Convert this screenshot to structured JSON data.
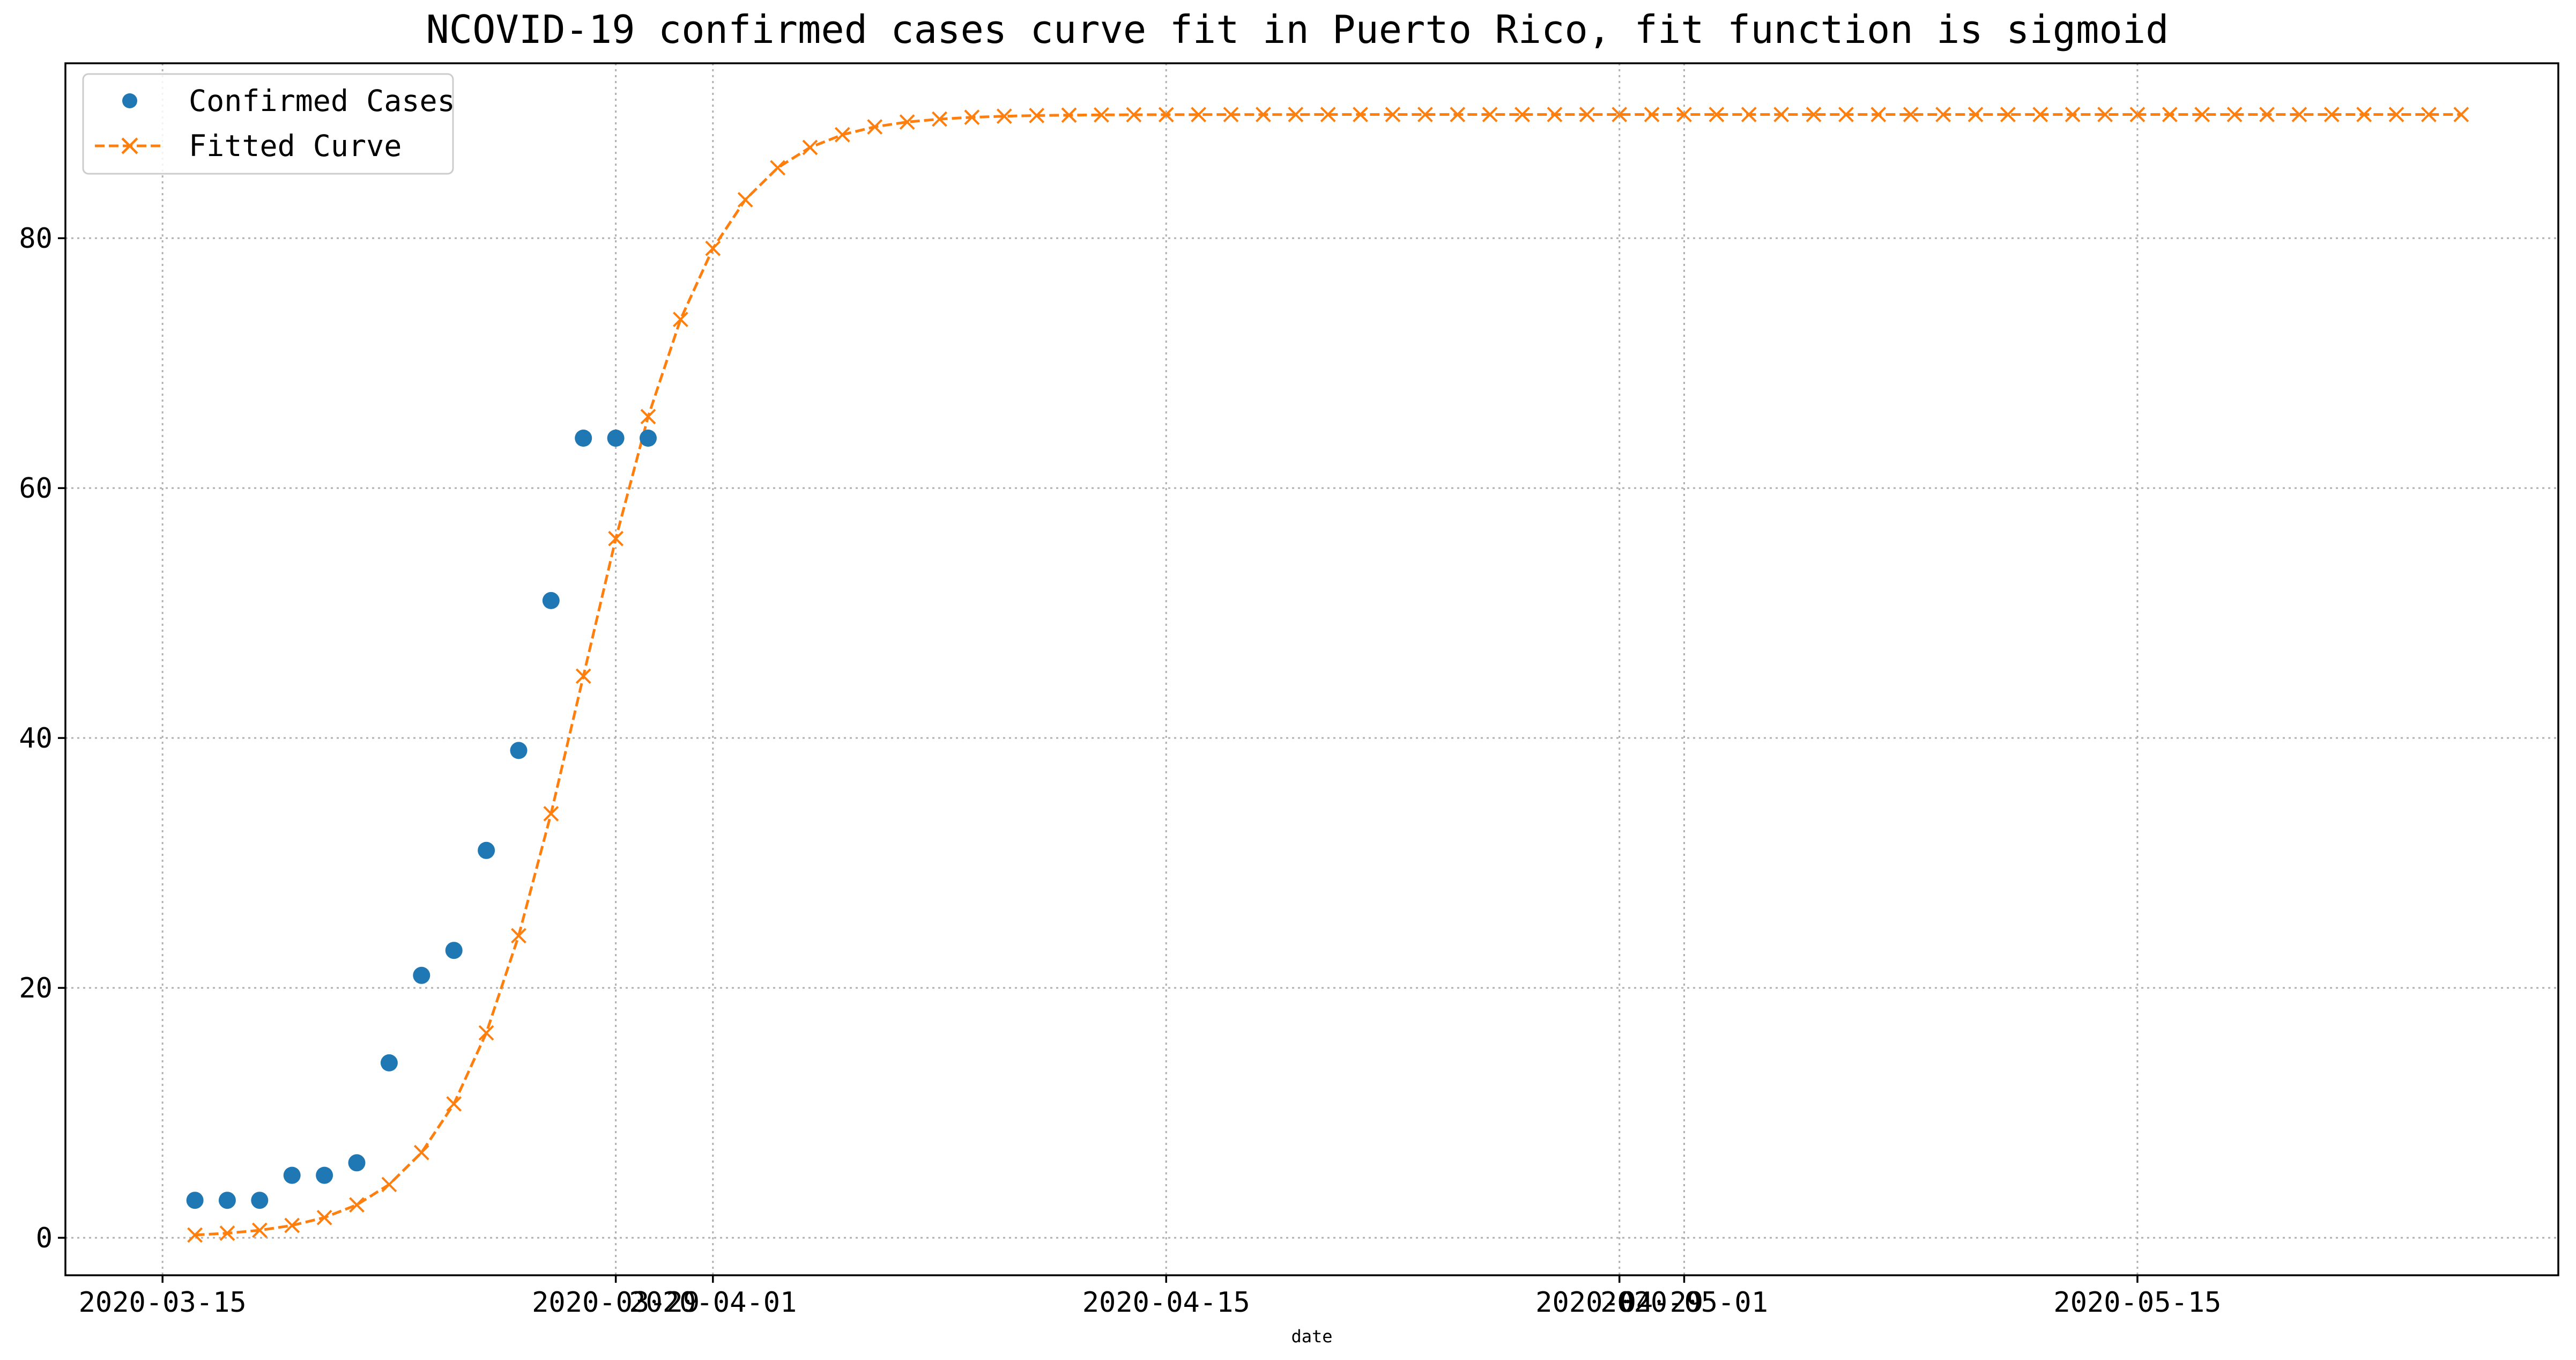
{
  "chart_data": {
    "type": "line",
    "title": "NCOVID-19 confirmed cases curve fit in Puerto Rico, fit function is sigmoid",
    "xlabel": "date",
    "ylabel": "",
    "x_range": [
      "2020-03-12",
      "2020-05-28"
    ],
    "ylim": [
      -3,
      94
    ],
    "x_ticks": [
      "2020-03-15",
      "2020-03-29",
      "2020-04-01",
      "2020-04-15",
      "2020-04-29",
      "2020-05-01",
      "2020-05-15"
    ],
    "x_tick_labels": [
      "2020-03-15",
      "2020-03-29",
      "2020-04-01",
      "2020-04-15",
      "2020-04-29",
      "2020-05-01",
      "2020-05-15"
    ],
    "y_ticks": [
      0,
      20,
      40,
      60,
      80
    ],
    "y_tick_labels": [
      "0",
      "20",
      "40",
      "60",
      "80"
    ],
    "grid": true,
    "legend": "top-left",
    "series": [
      {
        "name": "Confirmed Cases",
        "style": "markers",
        "marker": "circle",
        "color": "#1f77b4",
        "x": [
          "2020-03-16",
          "2020-03-17",
          "2020-03-18",
          "2020-03-19",
          "2020-03-20",
          "2020-03-21",
          "2020-03-22",
          "2020-03-23",
          "2020-03-24",
          "2020-03-25",
          "2020-03-26",
          "2020-03-27",
          "2020-03-28",
          "2020-03-29",
          "2020-03-30"
        ],
        "y": [
          3,
          3,
          3,
          5,
          5,
          6,
          14,
          21,
          23,
          31,
          39,
          51,
          64,
          64,
          64
        ]
      },
      {
        "name": "Fitted Curve",
        "style": "dashed-line-x-markers",
        "marker": "x",
        "color": "#ff7f0e",
        "x_start": "2020-03-16",
        "x_end": "2020-05-25",
        "L": 89.9,
        "k": 0.5,
        "x0": "2020-03-28",
        "note": "sigmoid fit, plateaus near 89.9"
      }
    ]
  }
}
